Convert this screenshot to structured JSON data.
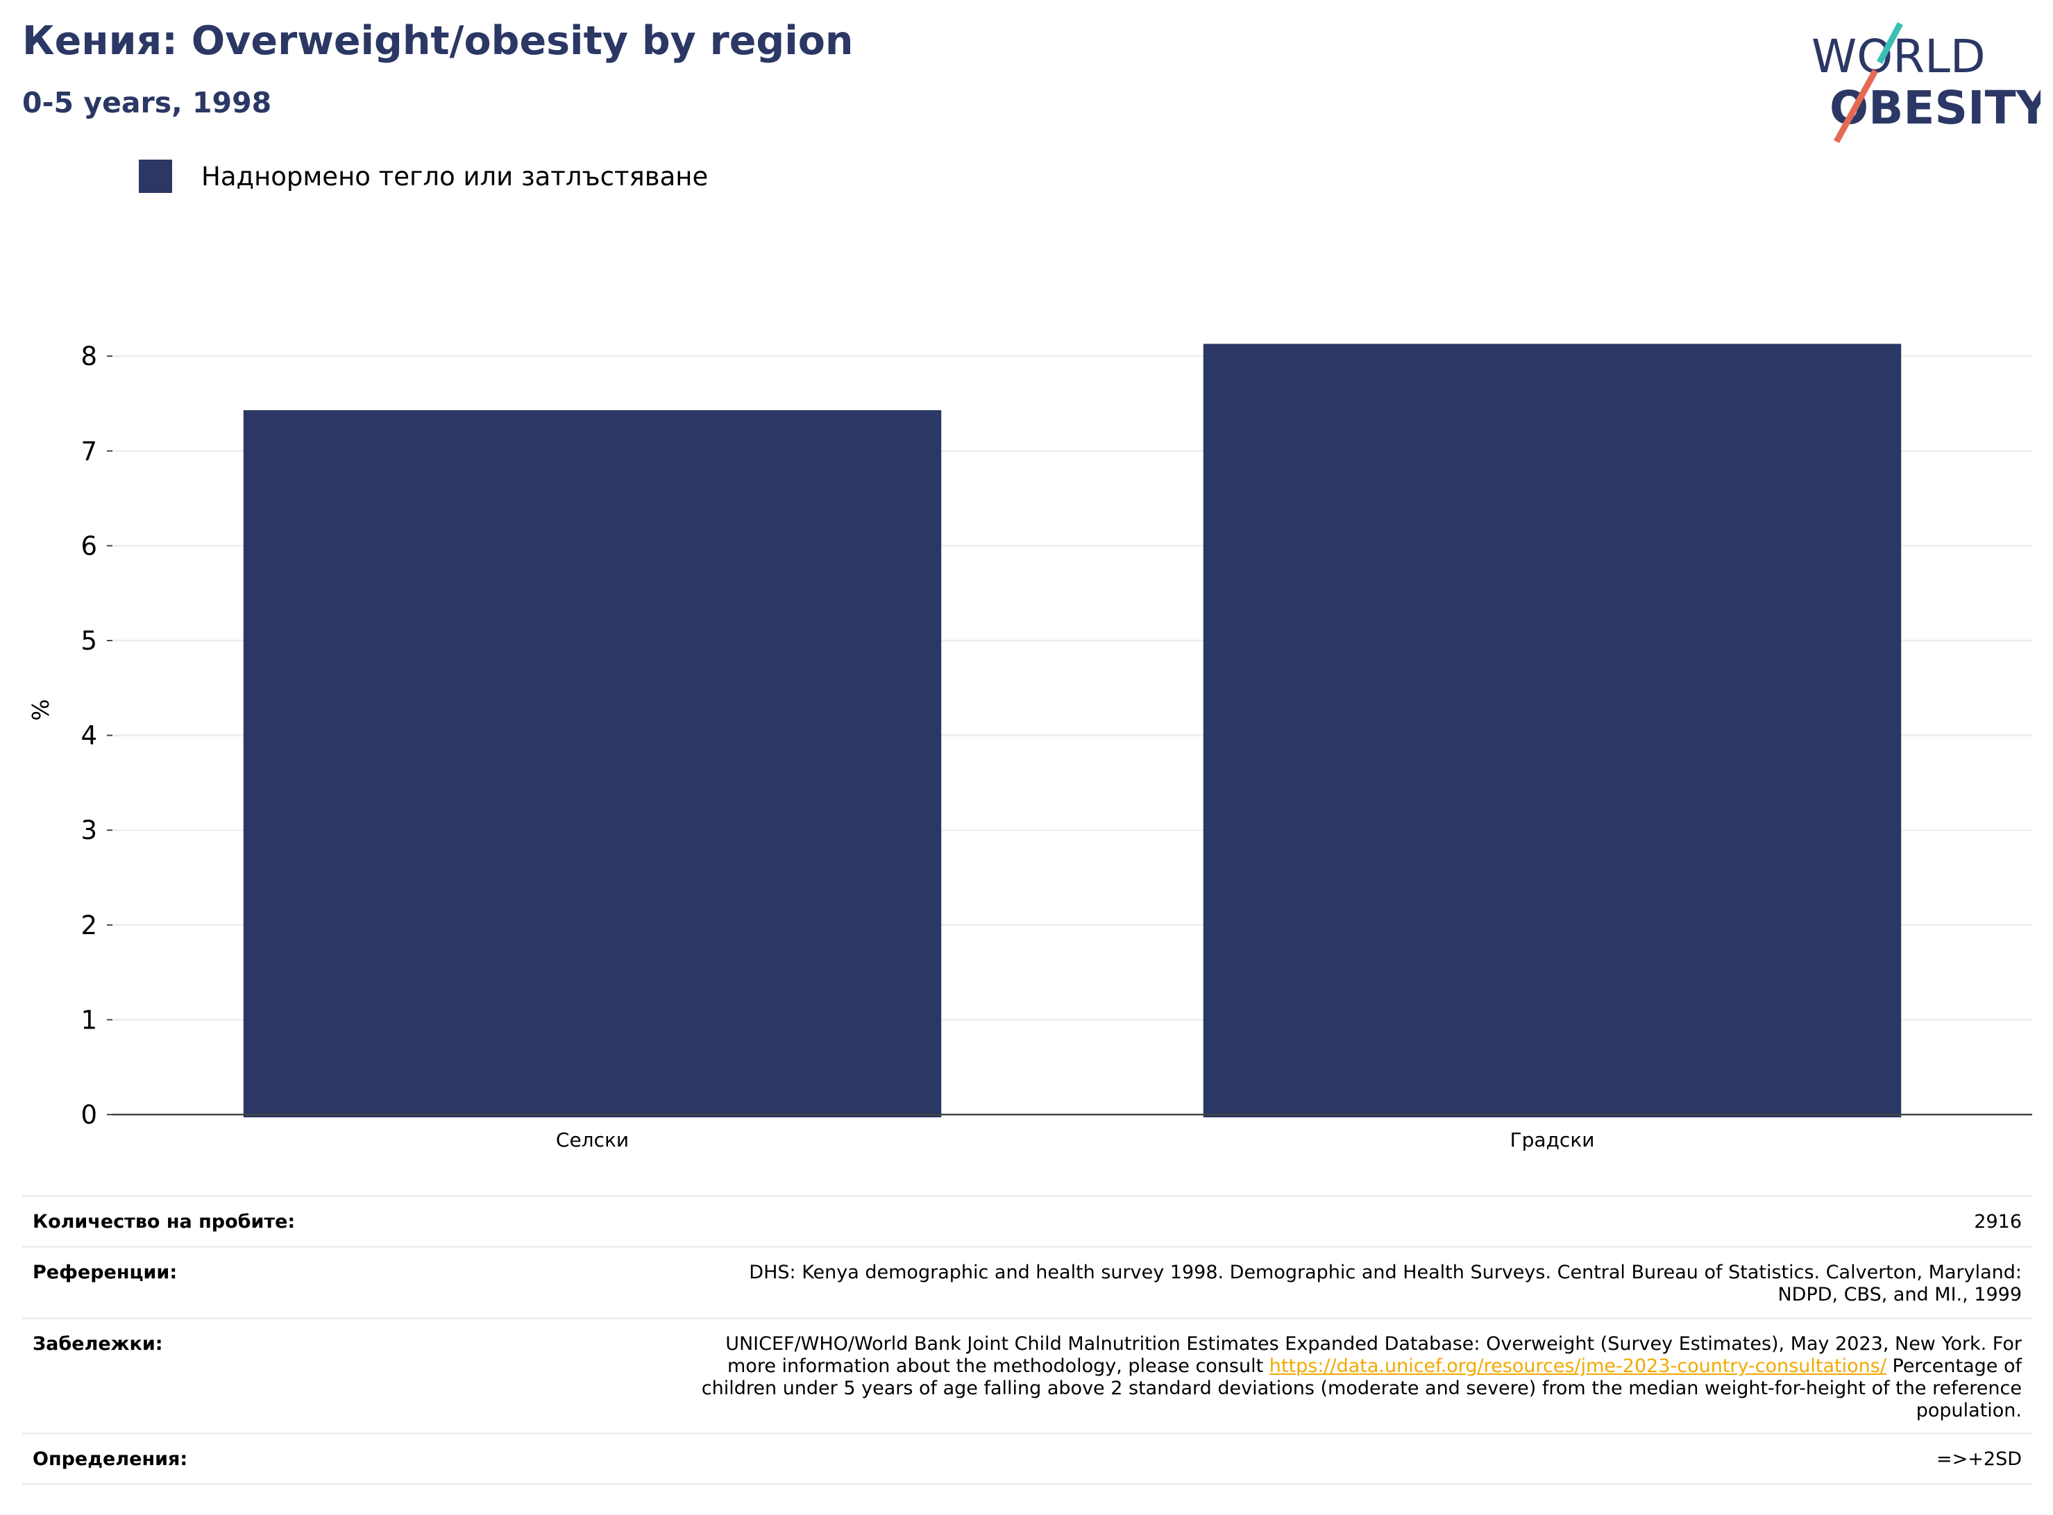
{
  "header": {
    "title": "Кения: Overweight/obesity by region",
    "subtitle": "0-5 years, 1998"
  },
  "logo": {
    "line1": "WORLD",
    "line2": "OBESITY",
    "slash_colors": [
      "#3bbfb5",
      "#e56a54"
    ]
  },
  "colors": {
    "bar": "#2b3764",
    "title": "#2b3764",
    "link": "#f2a900",
    "grid": "#eeeeee",
    "axis": "#444444"
  },
  "legend": {
    "label": "Наднормено тегло или затлъстяване"
  },
  "chart_data": {
    "type": "bar",
    "categories": [
      "Селски",
      "Градски"
    ],
    "series": [
      {
        "name": "Наднормено тегло или затлъстяване",
        "values": [
          7.43,
          8.13
        ]
      }
    ],
    "ylabel": "%",
    "xlabel": "",
    "ylim": [
      0,
      8.5
    ],
    "yticks": [
      0,
      1,
      2,
      3,
      4,
      5,
      6,
      7,
      8
    ],
    "grid": true,
    "legend_position": "top-left"
  },
  "info_table": {
    "sample_size": {
      "label": "Количество на пробите:",
      "value": "2916"
    },
    "references": {
      "label": "Референции:",
      "lines": [
        "DHS: Kenya demographic and health survey 1998. Demographic and Health Surveys. Central Bureau of Statistics. Calverton, Maryland:",
        "NDPD, CBS, and MI., 1999"
      ]
    },
    "notes": {
      "label": "Забележки:",
      "line1": "UNICEF/WHO/World Bank Joint Child Malnutrition Estimates Expanded Database: Overweight (Survey Estimates), May 2023, New York. For",
      "line2_pre": "more information about the methodology, please consult ",
      "link": "https://data.unicef.org/resources/jme-2023-country-consultations/",
      "line2_post": " Percentage of",
      "line3": "children under 5 years of age falling above 2 standard deviations (moderate and severe) from the median weight-for-height of the reference",
      "line4": "population."
    },
    "definitions": {
      "label": "Определения:",
      "value": "=>+2SD"
    }
  }
}
